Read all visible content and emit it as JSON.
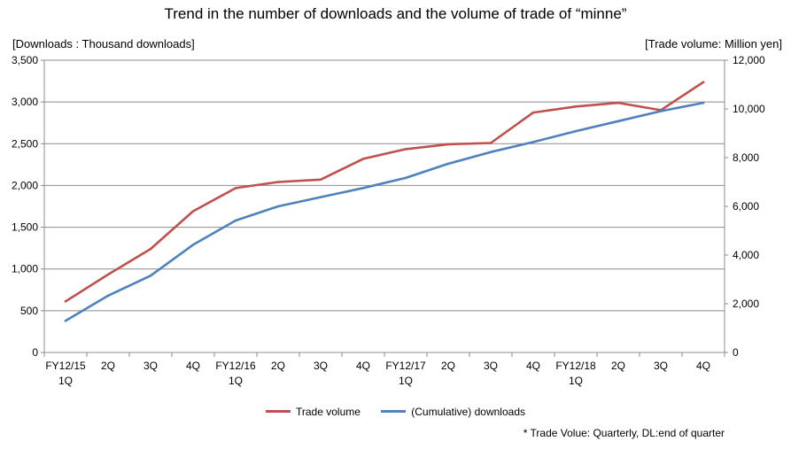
{
  "chart_data": {
    "type": "line",
    "title": "Trend in the number of downloads and the volume of trade of “minne”",
    "ylabel": "[Downloads : Thousand downloads]",
    "ylabel_right": "[Trade volume: Million yen]",
    "ylim": [
      0,
      3500
    ],
    "ylim_right": [
      0,
      12000
    ],
    "yticks": [
      "0",
      "500",
      "1,000",
      "1,500",
      "2,000",
      "2,500",
      "3,000",
      "3,500"
    ],
    "yticks_right": [
      "0",
      "2,000",
      "4,000",
      "6,000",
      "8,000",
      "10,000",
      "12,000"
    ],
    "categories": [
      [
        "FY12/15",
        "1Q"
      ],
      [
        "2Q"
      ],
      [
        "3Q"
      ],
      [
        "4Q"
      ],
      [
        "FY12/16",
        "1Q"
      ],
      [
        "2Q"
      ],
      [
        "3Q"
      ],
      [
        "4Q"
      ],
      [
        "FY12/17",
        "1Q"
      ],
      [
        "2Q"
      ],
      [
        "3Q"
      ],
      [
        "4Q"
      ],
      [
        "FY12/18",
        "1Q"
      ],
      [
        "2Q"
      ],
      [
        "3Q"
      ],
      [
        "4Q"
      ]
    ],
    "grid": true,
    "legend_position": "bottom",
    "series": [
      {
        "name": "Trade volume",
        "axis": "right",
        "color": "#c0504d",
        "values": [
          2100,
          3200,
          4250,
          5800,
          6750,
          7000,
          7100,
          7950,
          8350,
          8550,
          8600,
          9850,
          10100,
          10250,
          9950,
          11100
        ]
      },
      {
        "name": "(Cumulative) downloads",
        "axis": "left",
        "color": "#4f81bd",
        "values": [
          380,
          680,
          920,
          1290,
          1580,
          1750,
          1860,
          1970,
          2090,
          2260,
          2400,
          2520,
          2650,
          2770,
          2890,
          2990
        ]
      }
    ]
  },
  "footnote": "* Trade Volue: Quarterly, DL:end of quarter"
}
